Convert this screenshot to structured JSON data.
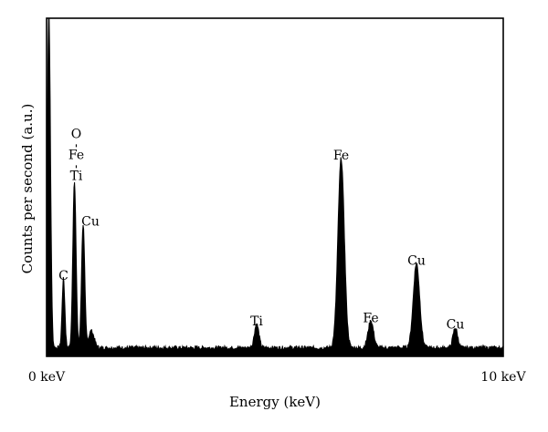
{
  "chart_data": {
    "type": "line",
    "xlabel": "Energy (keV)",
    "ylabel": "Counts per second (a.u.)",
    "xlim": [
      0,
      10
    ],
    "ylim": [
      0,
      100
    ],
    "x_ticks": [
      {
        "value": 0,
        "label": "0 keV"
      },
      {
        "value": 10,
        "label": "10 keV"
      }
    ],
    "grid": false,
    "fill": "#000000",
    "baseline": 2.5,
    "peaks": [
      {
        "x": 0.05,
        "height": 100,
        "width": 0.035,
        "label": ""
      },
      {
        "x": 0.37,
        "height": 20.5,
        "width": 0.03,
        "label": "C"
      },
      {
        "x": 0.61,
        "height": 49.5,
        "width": 0.035,
        "label": "Ti",
        "label_stack": [
          "O",
          "Fe",
          "Ti"
        ]
      },
      {
        "x": 0.8,
        "height": 36.5,
        "width": 0.035,
        "label": "Cu"
      },
      {
        "x": 0.98,
        "height": 5,
        "width": 0.06,
        "label": ""
      },
      {
        "x": 4.6,
        "height": 7,
        "width": 0.05,
        "label": "Ti"
      },
      {
        "x": 6.45,
        "height": 56,
        "width": 0.07,
        "label": "Fe"
      },
      {
        "x": 7.1,
        "height": 8,
        "width": 0.06,
        "label": "Fe"
      },
      {
        "x": 8.1,
        "height": 25,
        "width": 0.07,
        "label": "Cu"
      },
      {
        "x": 8.95,
        "height": 6,
        "width": 0.05,
        "label": "Cu"
      }
    ]
  }
}
